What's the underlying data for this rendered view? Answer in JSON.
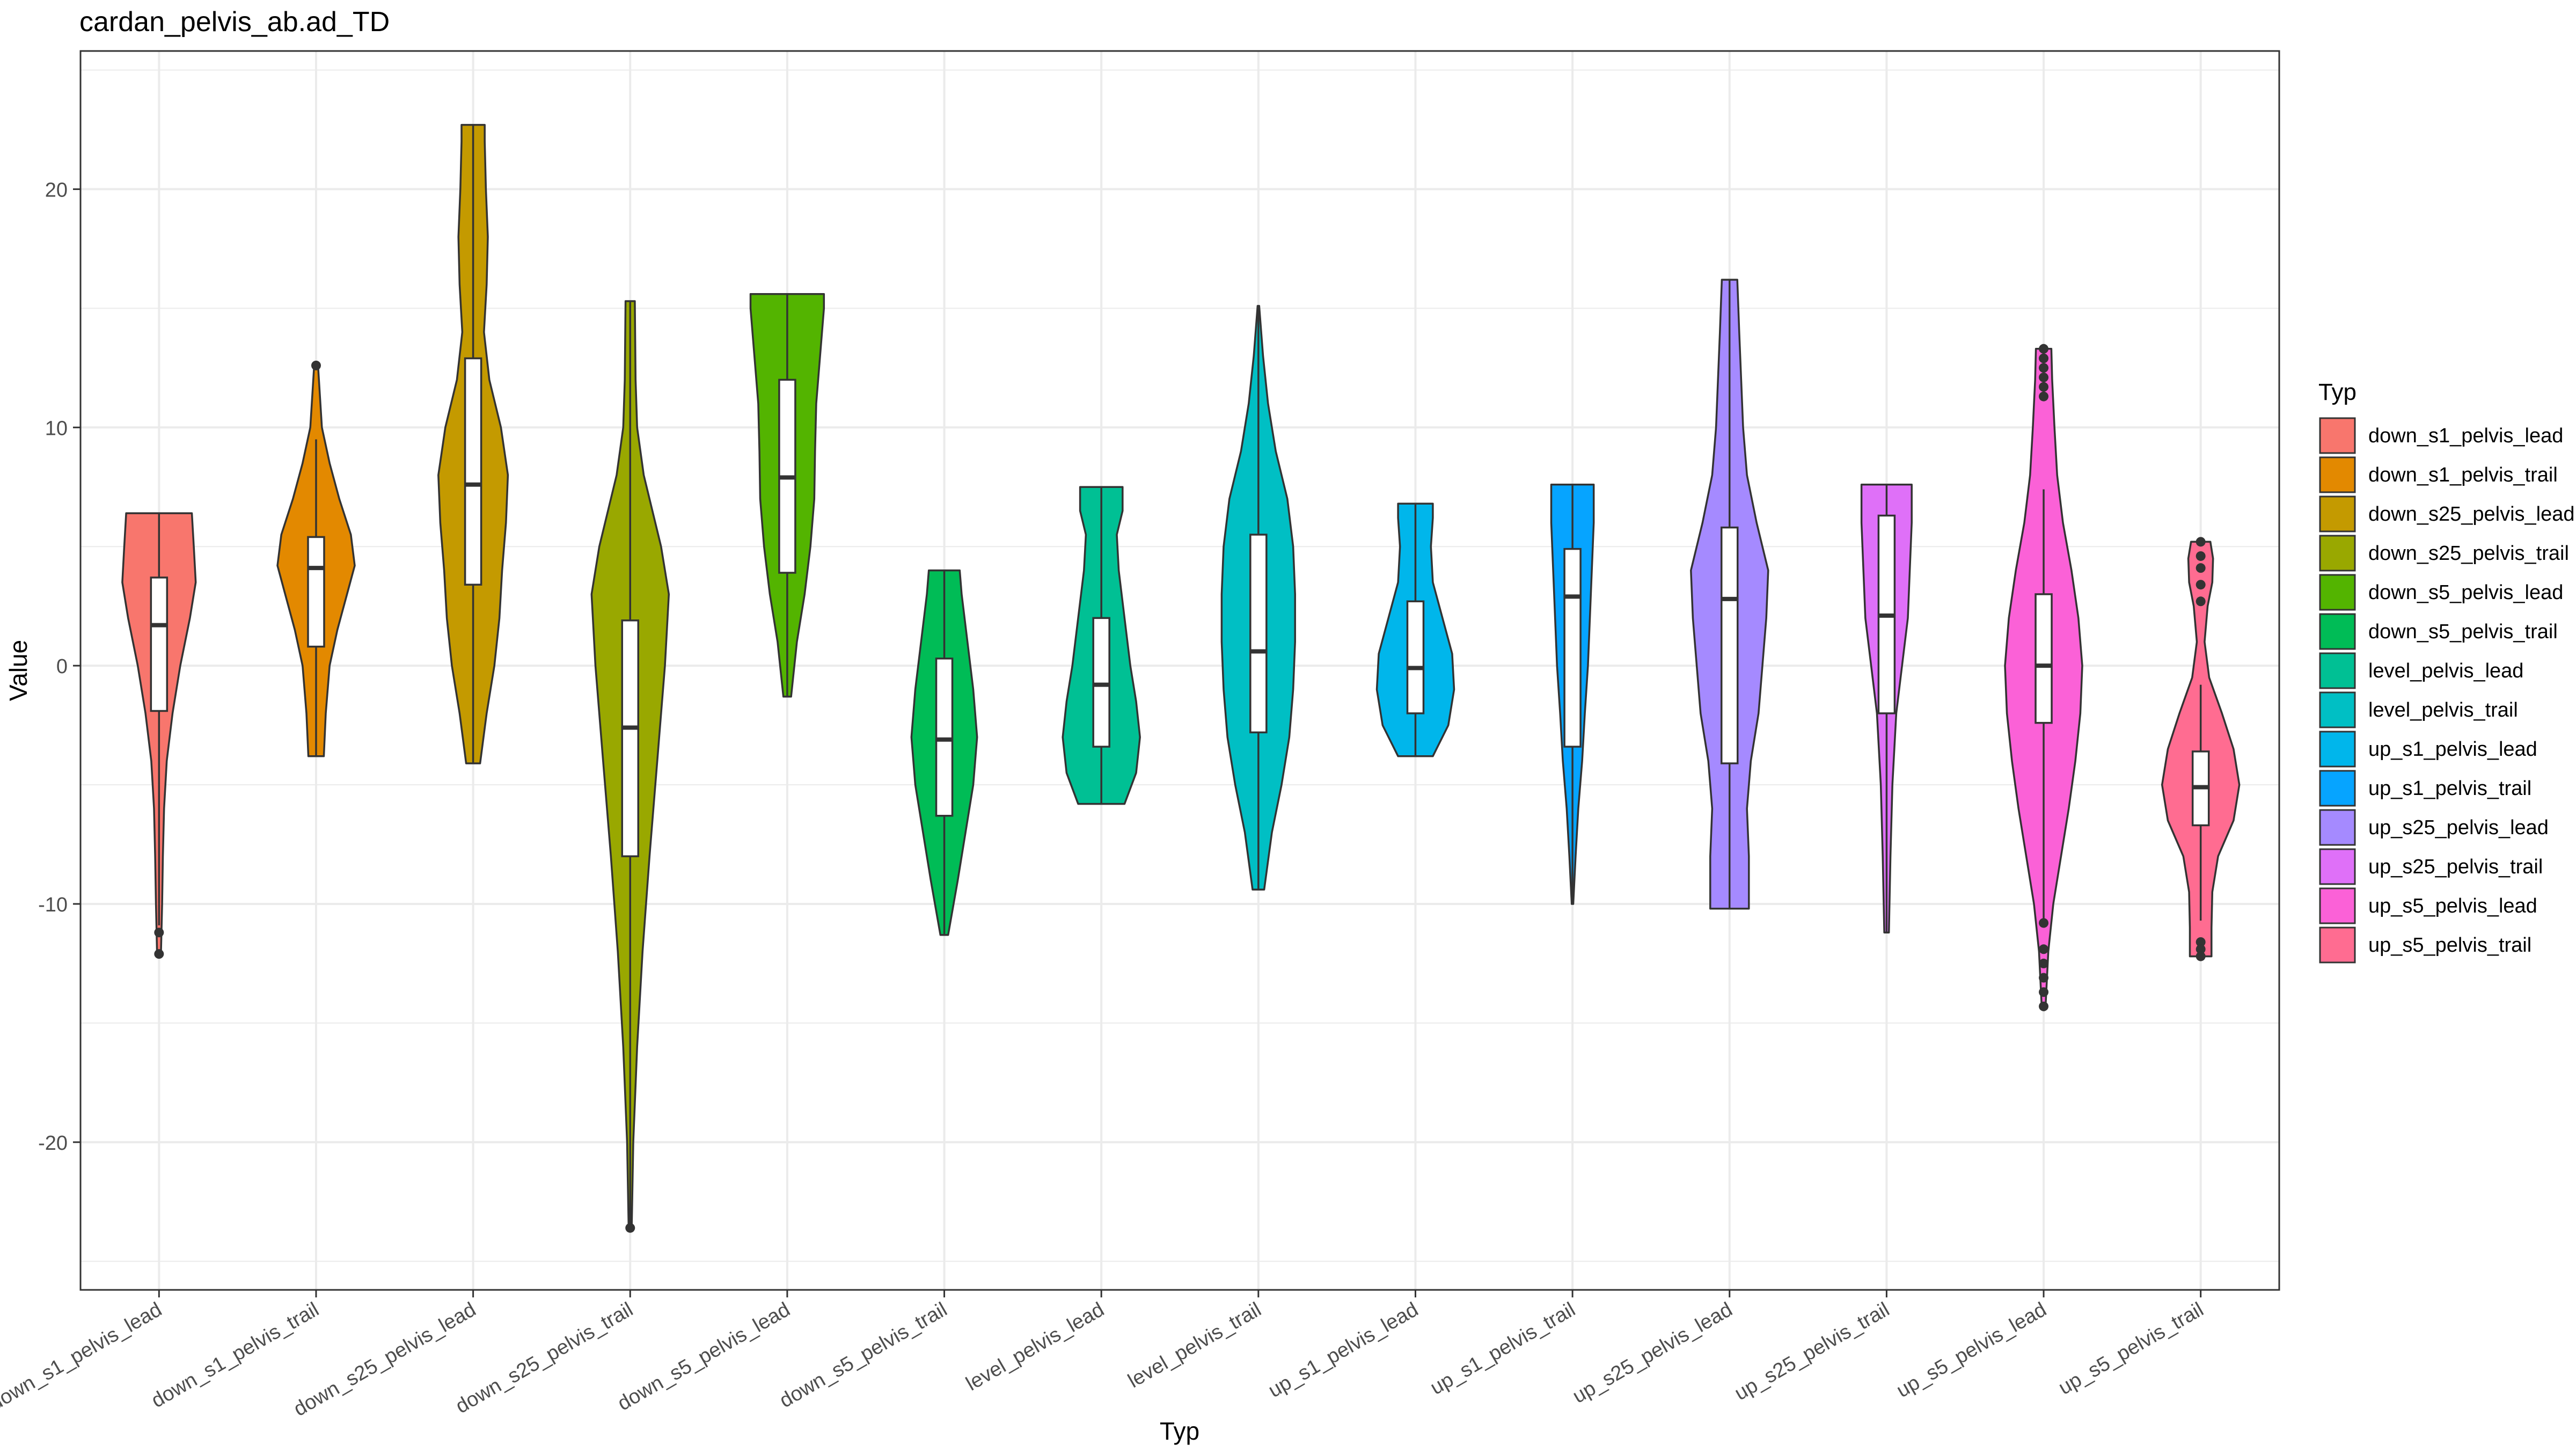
{
  "chart_data": {
    "type": "violin",
    "title": "cardan_pelvis_ab.ad_TD",
    "xlabel": "Typ",
    "ylabel": "Value",
    "ylim": [
      -26.2,
      25.8
    ],
    "yticks": [
      -20,
      -10,
      0,
      10,
      20
    ],
    "grid": true,
    "legend": {
      "title": "Typ",
      "position": "right"
    },
    "categories": [
      "down_s1_pelvis_lead",
      "down_s1_pelvis_trail",
      "down_s25_pelvis_lead",
      "down_s25_pelvis_trail",
      "down_s5_pelvis_lead",
      "down_s5_pelvis_trail",
      "level_pelvis_lead",
      "level_pelvis_trail",
      "up_s1_pelvis_lead",
      "up_s1_pelvis_trail",
      "up_s25_pelvis_lead",
      "up_s25_pelvis_trail",
      "up_s5_pelvis_lead",
      "up_s5_pelvis_trail"
    ],
    "series": [
      {
        "name": "down_s1_pelvis_lead",
        "color": "#F8766D",
        "min": -12.1,
        "max": 6.4,
        "q1": -1.9,
        "median": 1.7,
        "q3": 3.7,
        "whisker_low": -10.9,
        "whisker_high": 6.4,
        "outliers": [
          -11.2,
          -12.1
        ],
        "density": [
          [
            -12.1,
            0.05
          ],
          [
            -10,
            0.08
          ],
          [
            -8,
            0.1
          ],
          [
            -6,
            0.13
          ],
          [
            -4,
            0.2
          ],
          [
            -2,
            0.35
          ],
          [
            0,
            0.55
          ],
          [
            2,
            0.8
          ],
          [
            3.5,
            0.95
          ],
          [
            5,
            0.9
          ],
          [
            6.4,
            0.85
          ]
        ]
      },
      {
        "name": "down_s1_pelvis_trail",
        "color": "#E38900",
        "min": -3.8,
        "max": 12.6,
        "q1": 0.8,
        "median": 4.1,
        "q3": 5.4,
        "whisker_low": -3.8,
        "whisker_high": 9.5,
        "outliers": [
          12.6
        ],
        "density": [
          [
            -3.8,
            0.2
          ],
          [
            -2,
            0.25
          ],
          [
            0,
            0.35
          ],
          [
            1.5,
            0.55
          ],
          [
            3,
            0.8
          ],
          [
            4.2,
            1.0
          ],
          [
            5.5,
            0.9
          ],
          [
            7,
            0.6
          ],
          [
            8.5,
            0.35
          ],
          [
            10,
            0.15
          ],
          [
            12.6,
            0.05
          ]
        ]
      },
      {
        "name": "down_s25_pelvis_lead",
        "color": "#C49A00",
        "min": -4.1,
        "max": 22.7,
        "q1": 3.4,
        "median": 7.6,
        "q3": 12.9,
        "whisker_low": -4.1,
        "whisker_high": 22.7,
        "outliers": [],
        "density": [
          [
            -4.1,
            0.18
          ],
          [
            -2,
            0.35
          ],
          [
            0,
            0.55
          ],
          [
            2,
            0.68
          ],
          [
            4,
            0.75
          ],
          [
            6,
            0.85
          ],
          [
            8,
            0.9
          ],
          [
            10,
            0.72
          ],
          [
            12,
            0.42
          ],
          [
            14,
            0.28
          ],
          [
            16,
            0.35
          ],
          [
            18,
            0.38
          ],
          [
            20,
            0.33
          ],
          [
            22,
            0.3
          ],
          [
            22.7,
            0.3
          ]
        ]
      },
      {
        "name": "down_s25_pelvis_trail",
        "color": "#99A800",
        "min": -23.6,
        "max": 15.3,
        "q1": -8.0,
        "median": -2.6,
        "q3": 1.9,
        "whisker_low": -23.6,
        "whisker_high": 15.3,
        "outliers": [
          -23.6
        ],
        "density": [
          [
            -23.6,
            0.04
          ],
          [
            -20,
            0.08
          ],
          [
            -16,
            0.18
          ],
          [
            -12,
            0.32
          ],
          [
            -8,
            0.5
          ],
          [
            -4,
            0.7
          ],
          [
            0,
            0.9
          ],
          [
            3,
            1.0
          ],
          [
            5,
            0.8
          ],
          [
            8,
            0.35
          ],
          [
            10,
            0.18
          ],
          [
            12,
            0.14
          ],
          [
            15.3,
            0.12
          ]
        ]
      },
      {
        "name": "down_s5_pelvis_lead",
        "color": "#53B400",
        "min": -1.3,
        "max": 15.6,
        "q1": 3.9,
        "median": 7.9,
        "q3": 12.0,
        "whisker_low": -1.3,
        "whisker_high": 15.6,
        "outliers": [],
        "density": [
          [
            -1.3,
            0.1
          ],
          [
            1,
            0.25
          ],
          [
            3,
            0.45
          ],
          [
            5,
            0.6
          ],
          [
            7,
            0.7
          ],
          [
            9,
            0.72
          ],
          [
            11,
            0.75
          ],
          [
            13,
            0.85
          ],
          [
            15,
            0.95
          ],
          [
            15.6,
            0.95
          ]
        ]
      },
      {
        "name": "down_s5_pelvis_trail",
        "color": "#00BC56",
        "min": -11.3,
        "max": 4.0,
        "q1": -6.3,
        "median": -3.1,
        "q3": 0.3,
        "whisker_low": -11.3,
        "whisker_high": 4.0,
        "outliers": [],
        "density": [
          [
            -11.3,
            0.1
          ],
          [
            -9,
            0.35
          ],
          [
            -7,
            0.55
          ],
          [
            -5,
            0.75
          ],
          [
            -3,
            0.85
          ],
          [
            -1,
            0.75
          ],
          [
            1,
            0.6
          ],
          [
            3,
            0.45
          ],
          [
            4,
            0.4
          ]
        ]
      },
      {
        "name": "level_pelvis_lead",
        "color": "#00C094",
        "min": -5.8,
        "max": 7.5,
        "q1": -3.4,
        "median": -0.8,
        "q3": 2.0,
        "whisker_low": -5.8,
        "whisker_high": 7.5,
        "outliers": [],
        "density": [
          [
            -5.8,
            0.6
          ],
          [
            -4.5,
            0.9
          ],
          [
            -3,
            1.0
          ],
          [
            -1.5,
            0.9
          ],
          [
            0,
            0.75
          ],
          [
            2,
            0.6
          ],
          [
            4,
            0.45
          ],
          [
            5.5,
            0.4
          ],
          [
            6.5,
            0.55
          ],
          [
            7.5,
            0.55
          ]
        ]
      },
      {
        "name": "level_pelvis_trail",
        "color": "#00BFC4",
        "min": -9.4,
        "max": 15.1,
        "q1": -2.8,
        "median": 0.6,
        "q3": 5.5,
        "whisker_low": -9.4,
        "whisker_high": 15.1,
        "outliers": [],
        "density": [
          [
            -9.4,
            0.15
          ],
          [
            -7,
            0.35
          ],
          [
            -5,
            0.6
          ],
          [
            -3,
            0.8
          ],
          [
            -1,
            0.9
          ],
          [
            1,
            0.95
          ],
          [
            3,
            0.95
          ],
          [
            5,
            0.9
          ],
          [
            7,
            0.75
          ],
          [
            9,
            0.45
          ],
          [
            11,
            0.25
          ],
          [
            13,
            0.12
          ],
          [
            15.1,
            0.02
          ]
        ]
      },
      {
        "name": "up_s1_pelvis_lead",
        "color": "#00B6EB",
        "min": -3.8,
        "max": 6.8,
        "q1": -2.0,
        "median": -0.1,
        "q3": 2.7,
        "whisker_low": -3.8,
        "whisker_high": 6.8,
        "outliers": [],
        "density": [
          [
            -3.8,
            0.45
          ],
          [
            -2.5,
            0.85
          ],
          [
            -1,
            1.0
          ],
          [
            0.5,
            0.95
          ],
          [
            2,
            0.7
          ],
          [
            3.5,
            0.45
          ],
          [
            5,
            0.4
          ],
          [
            6.2,
            0.45
          ],
          [
            6.8,
            0.45
          ]
        ]
      },
      {
        "name": "up_s1_pelvis_trail",
        "color": "#06A4FF",
        "min": -10.0,
        "max": 7.6,
        "q1": -3.4,
        "median": 2.9,
        "q3": 4.9,
        "whisker_low": -10.0,
        "whisker_high": 7.6,
        "outliers": [],
        "density": [
          [
            -10,
            0.02
          ],
          [
            -8,
            0.08
          ],
          [
            -6,
            0.15
          ],
          [
            -4,
            0.25
          ],
          [
            -2,
            0.32
          ],
          [
            0,
            0.4
          ],
          [
            2,
            0.45
          ],
          [
            4,
            0.5
          ],
          [
            6,
            0.55
          ],
          [
            7.6,
            0.55
          ]
        ]
      },
      {
        "name": "up_s25_pelvis_lead",
        "color": "#A58AFF",
        "min": -10.2,
        "max": 16.2,
        "q1": -4.1,
        "median": 2.8,
        "q3": 5.8,
        "whisker_low": -10.2,
        "whisker_high": 16.2,
        "outliers": [],
        "density": [
          [
            -10.2,
            0.5
          ],
          [
            -8,
            0.5
          ],
          [
            -6,
            0.45
          ],
          [
            -4,
            0.55
          ],
          [
            -2,
            0.75
          ],
          [
            0,
            0.85
          ],
          [
            2,
            0.95
          ],
          [
            4,
            1.0
          ],
          [
            6,
            0.7
          ],
          [
            8,
            0.45
          ],
          [
            10,
            0.35
          ],
          [
            12,
            0.3
          ],
          [
            14,
            0.25
          ],
          [
            16.2,
            0.2
          ]
        ]
      },
      {
        "name": "up_s25_pelvis_trail",
        "color": "#DF70F8",
        "min": -11.2,
        "max": 7.6,
        "q1": -2.0,
        "median": 2.1,
        "q3": 6.3,
        "whisker_low": -11.2,
        "whisker_high": 7.6,
        "outliers": [],
        "density": [
          [
            -11.2,
            0.06
          ],
          [
            -8,
            0.1
          ],
          [
            -5,
            0.15
          ],
          [
            -2,
            0.25
          ],
          [
            0,
            0.4
          ],
          [
            2,
            0.55
          ],
          [
            4,
            0.6
          ],
          [
            6,
            0.65
          ],
          [
            7.6,
            0.65
          ]
        ]
      },
      {
        "name": "up_s5_pelvis_lead",
        "color": "#FB61D7",
        "min": -14.3,
        "max": 13.3,
        "q1": -2.4,
        "median": 0.0,
        "q3": 3.0,
        "whisker_low": -10.7,
        "whisker_high": 7.4,
        "outliers": [
          -10.8,
          -11.9,
          -12.5,
          -13.1,
          -13.7,
          -14.3,
          11.3,
          11.7,
          12.1,
          12.5,
          12.9,
          13.3
        ],
        "density": [
          [
            -14.3,
            0.05
          ],
          [
            -12,
            0.12
          ],
          [
            -10,
            0.25
          ],
          [
            -8,
            0.45
          ],
          [
            -6,
            0.65
          ],
          [
            -4,
            0.82
          ],
          [
            -2,
            0.95
          ],
          [
            0,
            1.0
          ],
          [
            2,
            0.9
          ],
          [
            4,
            0.72
          ],
          [
            6,
            0.5
          ],
          [
            8,
            0.35
          ],
          [
            10,
            0.28
          ],
          [
            12,
            0.22
          ],
          [
            13.3,
            0.2
          ]
        ]
      },
      {
        "name": "up_s5_pelvis_trail",
        "color": "#FF6C91",
        "min": -12.2,
        "max": 5.2,
        "q1": -6.7,
        "median": -5.1,
        "q3": -3.6,
        "whisker_low": -10.7,
        "whisker_high": -0.8,
        "outliers": [
          -11.6,
          -11.9,
          -12.2,
          2.7,
          3.4,
          4.1,
          4.6,
          5.2
        ],
        "density": [
          [
            -12.2,
            0.28
          ],
          [
            -11,
            0.28
          ],
          [
            -9.5,
            0.3
          ],
          [
            -8,
            0.45
          ],
          [
            -6.5,
            0.85
          ],
          [
            -5,
            1.0
          ],
          [
            -3.5,
            0.85
          ],
          [
            -2,
            0.55
          ],
          [
            -0.5,
            0.22
          ],
          [
            1,
            0.1
          ],
          [
            2.5,
            0.18
          ],
          [
            3.5,
            0.3
          ],
          [
            4.5,
            0.32
          ],
          [
            5.2,
            0.25
          ]
        ]
      }
    ]
  }
}
